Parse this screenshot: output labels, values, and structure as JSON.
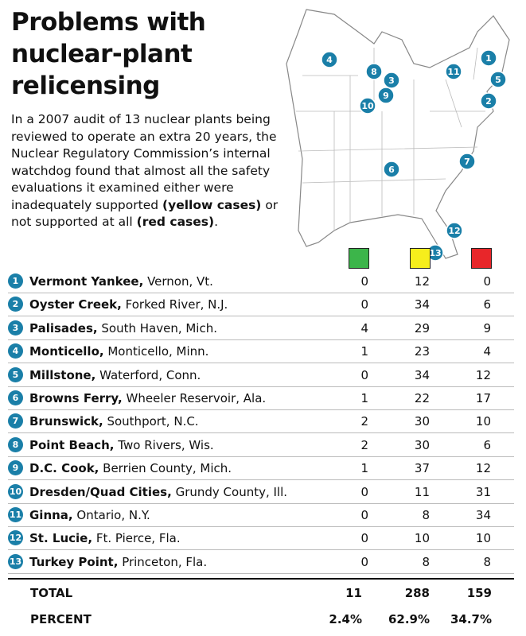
{
  "header": {
    "title": "Problems with nuclear-plant relicensing"
  },
  "description": [
    "In a 2007 audit of 13 nuclear plants being reviewed to operate an extra 20 years, the Nuclear Regulatory Commission’s internal watchdog found that almost all the safety evaluations it examined either were inadequately supported ",
    "(yellow cases)",
    " or not supported at all ",
    "(red cases)",
    "."
  ],
  "table": {
    "rows": [
      {
        "number": "1",
        "name": "Vermont Yankee,",
        "location": "Vernon, Vt.",
        "green": "0",
        "yellow": "12",
        "red": "0"
      },
      {
        "number": "2",
        "name": "Oyster Creek,",
        "location": "Forked River, N.J.",
        "green": "0",
        "yellow": "34",
        "red": "6"
      },
      {
        "number": "3",
        "name": "Palisades,",
        "location": "South Haven, Mich.",
        "green": "4",
        "yellow": "29",
        "red": "9"
      },
      {
        "number": "4",
        "name": "Monticello,",
        "location": "Monticello, Minn.",
        "green": "1",
        "yellow": "23",
        "red": "4"
      },
      {
        "number": "5",
        "name": "Millstone,",
        "location": "Waterford, Conn.",
        "green": "0",
        "yellow": "34",
        "red": "12"
      },
      {
        "number": "6",
        "name": "Browns Ferry,",
        "location": "Wheeler Reservoir, Ala.",
        "green": "1",
        "yellow": "22",
        "red": "17"
      },
      {
        "number": "7",
        "name": "Brunswick,",
        "location": "Southport, N.C.",
        "green": "2",
        "yellow": "30",
        "red": "10"
      },
      {
        "number": "8",
        "name": "Point Beach,",
        "location": "Two Rivers, Wis.",
        "green": "2",
        "yellow": "30",
        "red": "6"
      },
      {
        "number": "9",
        "name": "D.C. Cook,",
        "location": "Berrien County, Mich.",
        "green": "1",
        "yellow": "37",
        "red": "12"
      },
      {
        "number": "10",
        "name": "Dresden/Quad Cities,",
        "location": "Grundy County, Ill.",
        "green": "0",
        "yellow": "11",
        "red": "31"
      },
      {
        "number": "11",
        "name": "Ginna,",
        "location": "Ontario, N.Y.",
        "green": "0",
        "yellow": "8",
        "red": "34"
      },
      {
        "number": "12",
        "name": "St. Lucie,",
        "location": "Ft. Pierce, Fla.",
        "green": "0",
        "yellow": "10",
        "red": "10"
      },
      {
        "number": "13",
        "name": "Turkey Point,",
        "location": "Princeton, Fla.",
        "green": "0",
        "yellow": "8",
        "red": "8"
      }
    ],
    "total": {
      "label": "TOTAL",
      "green": "11",
      "yellow": "288",
      "red": "159"
    },
    "percent": {
      "label": "PERCENT",
      "green": "2.4%",
      "yellow": "62.9%",
      "red": "34.7%"
    }
  }
}
